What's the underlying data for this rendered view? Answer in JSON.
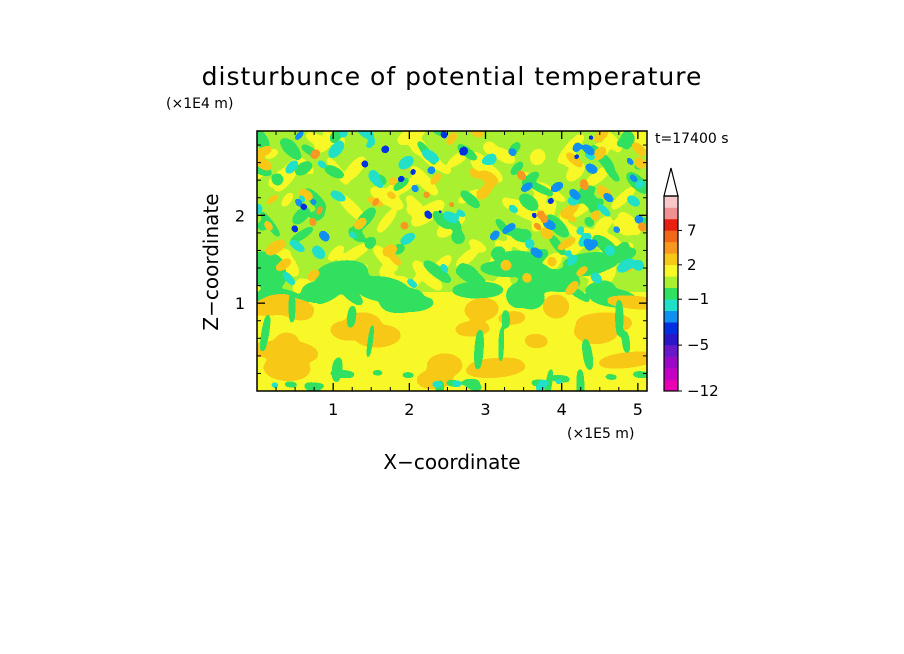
{
  "chart_data": {
    "type": "heatmap",
    "title": "disturbunce of potential temperature",
    "xlabel": "X−coordinate",
    "ylabel": "Z−coordinate",
    "x_unit": "(×1E5 m)",
    "y_unit": "(×1E4 m)",
    "time_label": "t=17400 s",
    "xlim": [
      0,
      5.12
    ],
    "ylim": [
      0,
      2.96
    ],
    "x_ticks": [
      1,
      2,
      3,
      4,
      5
    ],
    "x_tick_labels": [
      "1",
      "2",
      "3",
      "4",
      "5"
    ],
    "y_ticks": [
      1,
      2
    ],
    "y_tick_labels": [
      "1",
      "2"
    ],
    "x_minor_ticks": [
      0.25,
      0.5,
      0.75,
      1.25,
      1.5,
      1.75,
      2.25,
      2.5,
      2.75,
      3.25,
      3.5,
      3.75,
      4.25,
      4.5,
      4.75
    ],
    "y_minor_ticks": [
      0.2,
      0.4,
      0.6,
      0.8,
      1.2,
      1.4,
      1.6,
      1.8,
      2.2,
      2.4,
      2.6,
      2.8
    ],
    "colorbar": {
      "levels": [
        -12,
        -10,
        -8,
        -7,
        -5,
        -4,
        -3,
        -2,
        -1,
        0,
        1,
        2,
        3,
        5,
        7,
        9,
        11
      ],
      "colors": [
        "#e800b4",
        "#c400c4",
        "#9c08c8",
        "#6818c8",
        "#2a18c8",
        "#0030e0",
        "#1090f0",
        "#20e0c8",
        "#30e060",
        "#a8f030",
        "#f8f828",
        "#f8c818",
        "#f89820",
        "#f06818",
        "#e82010",
        "#f09090",
        "#f8c8c8"
      ],
      "labels": [
        {
          "value": 7,
          "text": "7"
        },
        {
          "value": 2,
          "text": "2"
        },
        {
          "value": -1,
          "text": "−1"
        },
        {
          "value": -5,
          "text": "−5"
        },
        {
          "value": -12,
          "text": "−12"
        }
      ],
      "extend": "max"
    }
  }
}
